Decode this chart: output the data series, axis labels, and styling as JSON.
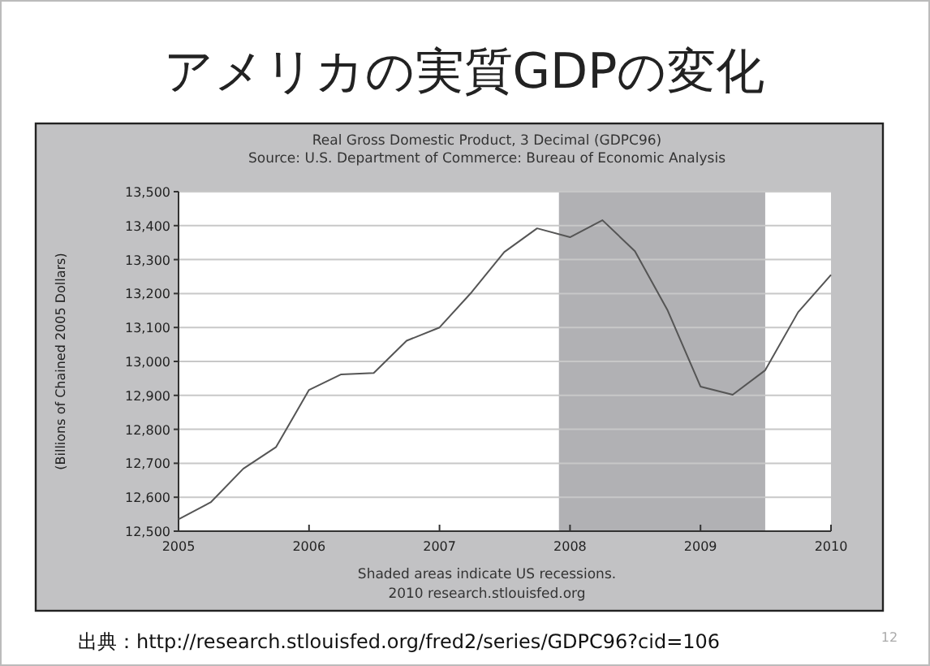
{
  "chart_data": {
    "type": "line",
    "title": "アメリカの実質GDPの変化",
    "subtitle": "Real Gross Domestic Product, 3 Decimal (GDPC96)",
    "ylabel": "(Billions of Chained 2005 Dollars)",
    "annotations": [
      "Source: U.S. Department of Commerce: Bureau of Economic Analysis",
      "Shaded areas indicate US recessions.",
      "2010 research.stlouisfed.org",
      "出典：http://research.stlouisfed.org/fred2/series/GDPC96?cid=106",
      "12"
    ],
    "x": [
      "2005-01",
      "2005-04",
      "2005-07",
      "2005-10",
      "2006-01",
      "2006-04",
      "2006-07",
      "2006-10",
      "2007-01",
      "2007-04",
      "2007-07",
      "2007-10",
      "2008-01",
      "2008-04",
      "2008-07",
      "2008-10",
      "2009-01",
      "2009-04",
      "2009-07",
      "2009-10",
      "2010-01"
    ],
    "series": [
      {
        "color": "#555555",
        "values": [
          12535,
          12585,
          12684,
          12748,
          12916,
          12962,
          12966,
          13061,
          13100,
          13204,
          13322,
          13392,
          13366,
          13416,
          13325,
          13150,
          12926,
          12902,
          12974,
          13145,
          13255
        ]
      }
    ],
    "xlim": [
      "2005-01",
      "2010-01"
    ],
    "xticks": [
      {
        "value": "2005-01",
        "label": "2005"
      },
      {
        "value": "2006-01",
        "label": "2006"
      },
      {
        "value": "2007-01",
        "label": "2007"
      },
      {
        "value": "2008-01",
        "label": "2008"
      },
      {
        "value": "2009-01",
        "label": "2009"
      },
      {
        "value": "2010-01",
        "label": "2010"
      }
    ],
    "ylim": [
      12500,
      13500
    ],
    "yticks": [
      {
        "value": 12500,
        "label": "12,500"
      },
      {
        "value": 12600,
        "label": "12,600"
      },
      {
        "value": 12700,
        "label": "12,700"
      },
      {
        "value": 12800,
        "label": "12,800"
      },
      {
        "value": 12900,
        "label": "12,900"
      },
      {
        "value": 13000,
        "label": "13,000"
      },
      {
        "value": 13100,
        "label": "13,100"
      },
      {
        "value": 13200,
        "label": "13,200"
      },
      {
        "value": 13300,
        "label": "13,300"
      },
      {
        "value": 13400,
        "label": "13,400"
      },
      {
        "value": 13500,
        "label": "13,500"
      }
    ],
    "bands": [
      {
        "axis": "x",
        "from": "2007-12",
        "to": "2009-07",
        "color": "#b1b1b4"
      }
    ],
    "grid": "y",
    "marker": "none",
    "line_style": "solid"
  }
}
